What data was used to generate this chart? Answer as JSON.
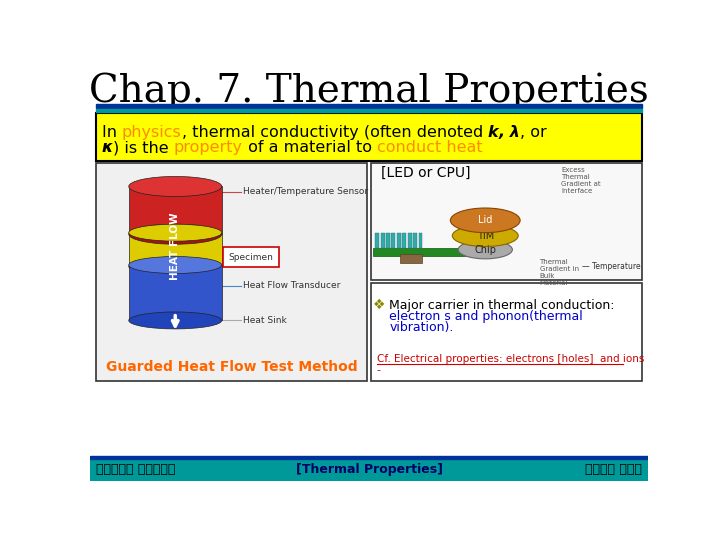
{
  "title": "Chap. 7. Thermal Properties",
  "title_fontsize": 28,
  "title_font": "serif",
  "bg_color": "#ffffff",
  "header_box_color": "#ffff00",
  "header_box_edge": "#000000",
  "top_bar_color1": "#003399",
  "top_bar_color2": "#009999",
  "footer_left": "부산대학교 재료공학부",
  "footer_center": "[Thermal Properties]",
  "footer_right": "계면공학 연구실",
  "footer_bar_color": "#009999",
  "left_caption": "Guarded Heat Flow Test Method",
  "left_caption_color": "#ff6600",
  "led_label": "[LED or CPU]",
  "bullet_line1": "Major carrier in thermal conduction:",
  "bullet_line2": "electron s and phonon(thermal",
  "bullet_line3": "vibration).",
  "bullet_color1": "#000000",
  "bullet_color2": "#0000cc",
  "cf_text": "Cf. Electrical properties: electrons [holes]  and ions",
  "cf_color": "#cc0000",
  "header_pieces1": [
    [
      "In ",
      "#000000",
      false,
      false
    ],
    [
      "physics",
      "#ff8c00",
      false,
      false
    ],
    [
      ", thermal conductivity (often denoted ",
      "#000000",
      false,
      false
    ],
    [
      "k",
      "#000000",
      true,
      true
    ],
    [
      ", λ",
      "#000000",
      true,
      true
    ],
    [
      ", or",
      "#000000",
      false,
      false
    ]
  ],
  "header_pieces2": [
    [
      "κ",
      "#000000",
      true,
      true
    ],
    [
      ") is the ",
      "#000000",
      false,
      false
    ],
    [
      "property",
      "#ff8c00",
      false,
      false
    ],
    [
      " of a material to ",
      "#000000",
      false,
      false
    ],
    [
      "conduct heat",
      "#ff8c00",
      false,
      false
    ]
  ]
}
